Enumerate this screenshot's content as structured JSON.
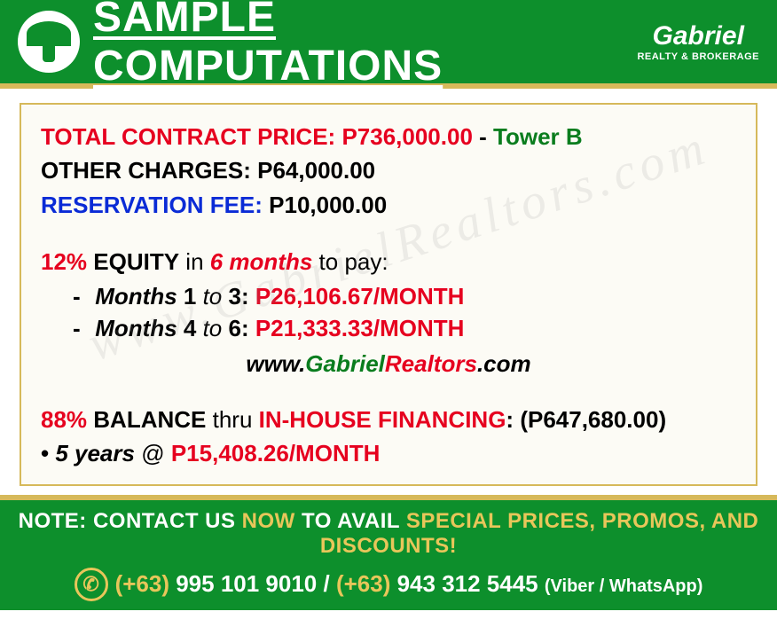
{
  "header": {
    "title": "SAMPLE COMPUTATIONS",
    "brand_name": "Gabriel",
    "brand_tagline": "REALTY & BROKERAGE"
  },
  "colors": {
    "primary_green": "#0d8f2c",
    "accent_gold": "#d6b95a",
    "text_red": "#e6001f",
    "text_green": "#0a7d1e",
    "text_blue": "#0a2bd6",
    "text_black": "#000000",
    "bg_cream": "#fcfbf5",
    "footer_gold": "#e8c65a"
  },
  "content": {
    "line1_label": "TOTAL CONTRACT PRICE: ",
    "line1_value": "P736,000.00",
    "line1_sep": " - ",
    "line1_tower": "Tower B",
    "line2_label": "OTHER CHARGES: ",
    "line2_value": "P64,000.00",
    "line3_label": "RESERVATION FEE: ",
    "line3_value": "P10,000.00",
    "equity_pct": "12%",
    "equity_word": " EQUITY",
    "equity_in": " in ",
    "equity_months": "6 months",
    "equity_topay": " to pay:",
    "m1_label": "Months",
    "m1_range_a": " 1 ",
    "m1_to": "to",
    "m1_range_b": " 3",
    "m1_colon": ": ",
    "m1_value": "P26,106.67/MONTH",
    "m2_label": "Months",
    "m2_range_a": " 4 ",
    "m2_to": "to",
    "m2_range_b": " 6",
    "m2_colon": ": ",
    "m2_value": "P21,333.33/MONTH",
    "website_pre": "www.",
    "website_g": "Gabriel",
    "website_r": "Realtors",
    "website_post": ".com",
    "balance_pct": "88%",
    "balance_word": " BALANCE",
    "balance_thru": " thru ",
    "balance_fin": "IN-HOUSE FINANCING",
    "balance_colon": ": ",
    "balance_amt": "(P647,680.00)",
    "plan_bullet": "• ",
    "plan_years": "5 years",
    "plan_at": " @ ",
    "plan_value": "P15,408.26/MONTH",
    "watermark": "www.GabrielRealtors.com"
  },
  "footer": {
    "note_1": "NOTE: CONTACT US ",
    "note_now": "NOW",
    "note_2": " TO AVAIL ",
    "note_special": "SPECIAL PRICES, PROMOS, AND DISCOUNTS!",
    "phone1_cc": "(+63)",
    "phone1": " 995 101 9010 ",
    "slash": "/ ",
    "phone2_cc": "(+63)",
    "phone2": " 943 312 5445 ",
    "apps": "(Viber / WhatsApp)"
  }
}
